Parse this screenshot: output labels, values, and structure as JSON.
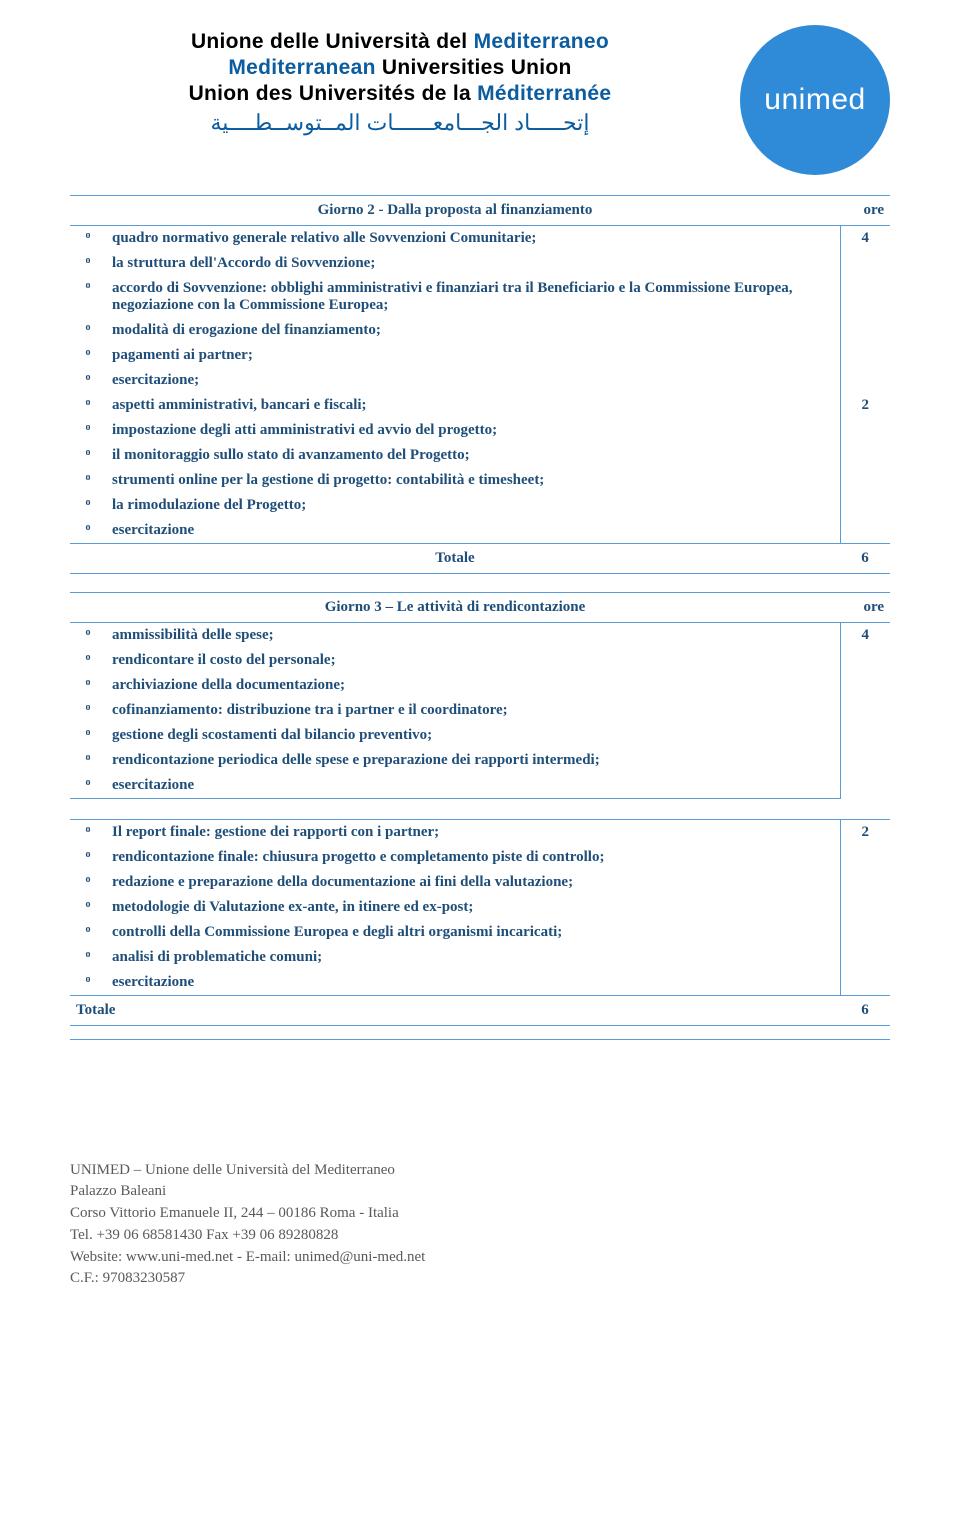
{
  "header": {
    "it_1": "Unione delle Università del ",
    "it_2": "Mediterraneo",
    "en_1": "Mediterranean",
    "en_2": " Universities Union",
    "fr_1": "Union des Universités de la ",
    "fr_2": "Méditerranée",
    "arabic": "إتحـــــاد الجـــامعــــــات المــتوســطــــية",
    "logo": "unimed"
  },
  "tbl1": {
    "title": "Giorno 2 - Dalla proposta al finanziamento",
    "ore_label": "ore",
    "rows_a": [
      "quadro normativo generale relativo alle Sovvenzioni Comunitarie;",
      "la struttura dell'Accordo di Sovvenzione;",
      "accordo di Sovvenzione: obblighi amministrativi e finanziari tra il Beneficiario e la Commissione Europea, negoziazione con la Commissione Europea;",
      "modalità di erogazione del finanziamento;",
      "pagamenti ai partner;",
      "esercitazione;"
    ],
    "hours_a": "4",
    "rows_b": [
      "aspetti amministrativi, bancari e fiscali;",
      "impostazione degli atti amministrativi ed avvio del progetto;",
      "il monitoraggio sullo stato di avanzamento del Progetto;",
      "strumenti online per la gestione di progetto: contabilità e timesheet;",
      "la rimodulazione del Progetto;",
      "esercitazione"
    ],
    "hours_b": "2",
    "totalender": "Totale",
    "total_label": "Totale",
    "total_hours": "6"
  },
  "tbl2": {
    "title": "Giorno 3 – Le attività di rendicontazione",
    "ore_label": "ore",
    "rows_a": [
      "ammissibilità delle spese;",
      "rendicontare il costo del personale;",
      "archiviazione della documentazione;",
      "cofinanziamento: distribuzione tra i partner e il coordinatore;",
      "gestione degli scostamenti dal bilancio preventivo;",
      "rendicontazione periodica delle spese e preparazione dei rapporti intermedi;",
      "esercitazione"
    ],
    "hours_a": "4",
    "rows_b": [
      "Il report finale: gestione dei rapporti con i partner;",
      "rendicontazione finale: chiusura progetto e completamento piste di controllo;",
      "redazione e preparazione della documentazione ai fini della valutazione;",
      "metodologie di Valutazione ex-ante, in itinere ed ex-post;",
      "controlli della Commissione Europea e degli altri organismi incaricati;",
      "analisi di problematiche comuni;",
      "esercitazione"
    ],
    "hours_b": "2",
    "total_label": "Totale",
    "total_hours": "6"
  },
  "footer": {
    "l1": "UNIMED – Unione delle Università del Mediterraneo",
    "l2": "Palazzo Baleani",
    "l3": "Corso Vittorio Emanuele II, 244 – 00186 Roma - Italia",
    "l4_a": "Tel. +39 06  68581430  Fax +39 06 89280828",
    "l5_a": "Website: ",
    "l5_link1": "www.uni-med.net",
    "l5_b": " - E-mail: ",
    "l5_link2": "unimed@uni-med.net",
    "l6": "C.F.: 97083230587"
  },
  "style": {
    "primary_color": "#1f4e79",
    "border_color": "#5b9bd5",
    "logo_bg": "#2f8bd8",
    "footer_color": "#595959"
  }
}
